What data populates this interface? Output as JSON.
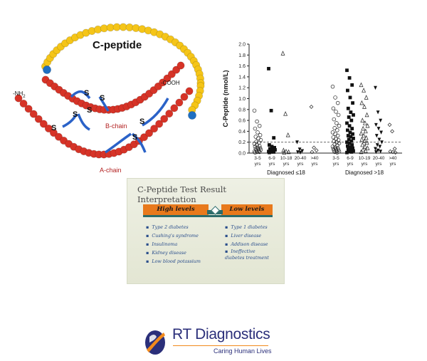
{
  "molecule": {
    "c_peptide_label": "C-peptide",
    "nh2_label": "-NH",
    "nh2_sub": "2",
    "cooh_label": "-COOH",
    "b_chain_label": "B-chain",
    "a_chain_label": "A-chain",
    "bond_label": "S",
    "colors": {
      "c_chain": "#f5c518",
      "ab_chain": "#d63327",
      "junction": "#1f6fc2",
      "bond": "#2a62c8"
    }
  },
  "chart_data": {
    "type": "scatter",
    "ylabel": "C-Peptide (nmol/L)",
    "ylim": [
      0,
      2.0
    ],
    "yticks": [
      "0.0",
      "0.2",
      "0.4",
      "0.6",
      "0.8",
      "1.0",
      "1.2",
      "1.4",
      "1.6",
      "1.8",
      "2.0"
    ],
    "threshold": 0.2,
    "groups": [
      "Diagnosed ≤18",
      "Diagnosed >18"
    ],
    "categories": [
      {
        "top": "3-5",
        "bottom": "yrs",
        "group": 0,
        "marker": "circle",
        "values": [
          0.78,
          0.58,
          0.5,
          0.45,
          0.38,
          0.33,
          0.3,
          0.27,
          0.24,
          0.21,
          0.19,
          0.17,
          0.15,
          0.13,
          0.12,
          0.1,
          0.09,
          0.08,
          0.07,
          0.06,
          0.05,
          0.04,
          0.03,
          0.02,
          0.02,
          0.01
        ]
      },
      {
        "top": "6-9",
        "bottom": "yrs",
        "group": 0,
        "marker": "square",
        "values": [
          1.55,
          0.78,
          0.28,
          0.15,
          0.12,
          0.1,
          0.08,
          0.07,
          0.06,
          0.05,
          0.04,
          0.03,
          0.02,
          0.02,
          0.01
        ]
      },
      {
        "top": "10-18",
        "bottom": "yrs",
        "group": 0,
        "marker": "triangle",
        "values": [
          1.83,
          0.72,
          0.33,
          0.05,
          0.03,
          0.02,
          0.01
        ]
      },
      {
        "top": "20-40",
        "bottom": "yrs",
        "group": 0,
        "marker": "down-triangle",
        "values": [
          0.2,
          0.07,
          0.04,
          0.02,
          0.01
        ]
      },
      {
        "top": ">40",
        "bottom": "yrs",
        "group": 0,
        "marker": "diamond",
        "values": [
          0.85,
          0.1,
          0.05,
          0.02
        ]
      },
      {
        "top": "3-5",
        "bottom": "yrs",
        "group": 1,
        "marker": "circle",
        "values": [
          1.22,
          1.02,
          0.92,
          0.82,
          0.76,
          0.7,
          0.62,
          0.55,
          0.5,
          0.46,
          0.42,
          0.38,
          0.35,
          0.32,
          0.29,
          0.26,
          0.24,
          0.22,
          0.2,
          0.18,
          0.16,
          0.14,
          0.12,
          0.1,
          0.09,
          0.08,
          0.07,
          0.06,
          0.05,
          0.04,
          0.03,
          0.02,
          0.01
        ]
      },
      {
        "top": "6-9",
        "bottom": "yrs",
        "group": 1,
        "marker": "square",
        "values": [
          1.52,
          1.38,
          1.25,
          1.15,
          1.02,
          0.92,
          0.82,
          0.75,
          0.7,
          0.66,
          0.6,
          0.55,
          0.5,
          0.45,
          0.42,
          0.38,
          0.35,
          0.32,
          0.3,
          0.27,
          0.25,
          0.22,
          0.2,
          0.18,
          0.15,
          0.13,
          0.11,
          0.09,
          0.07,
          0.05,
          0.04,
          0.03,
          0.02,
          0.01
        ]
      },
      {
        "top": "10-19",
        "bottom": "yrs",
        "group": 1,
        "marker": "triangle",
        "values": [
          1.25,
          1.15,
          1.02,
          0.92,
          0.85,
          0.7,
          0.6,
          0.55,
          0.5,
          0.45,
          0.4,
          0.36,
          0.32,
          0.28,
          0.25,
          0.22,
          0.19,
          0.15,
          0.12,
          0.09,
          0.06,
          0.04,
          0.02
        ]
      },
      {
        "top": "20-40",
        "bottom": "yrs",
        "group": 1,
        "marker": "down-triangle",
        "values": [
          1.2,
          0.75,
          0.6,
          0.52,
          0.45,
          0.38,
          0.32,
          0.25,
          0.2,
          0.15,
          0.12,
          0.08,
          0.05,
          0.03,
          0.02
        ]
      },
      {
        "top": ">40",
        "bottom": "yrs",
        "group": 1,
        "marker": "diamond",
        "values": [
          0.52,
          0.4,
          0.08,
          0.03,
          0.02,
          0.01
        ]
      }
    ]
  },
  "card": {
    "title": "C-Peptide Test Result Interpretation",
    "high_label": "High levels",
    "low_label": "Low levels",
    "high_items": [
      "Type 2 diabetes",
      "Cushing's syndrome",
      "Insulinoma",
      "Kidney disease",
      "Low blood potassium"
    ],
    "low_items": [
      "Type 1 diabetes",
      "Liver disease",
      "Addison disease",
      "Ineffective diabetes treatment"
    ],
    "colors": {
      "banner": "#e8791c",
      "beam": "#2b6b6a",
      "item_text": "#2a4e8c"
    }
  },
  "logo": {
    "brand": "RT Diagnostics",
    "tagline": "Caring Human Lives",
    "colors": {
      "brand": "#2b2f7a",
      "accent": "#f28a1c"
    }
  }
}
